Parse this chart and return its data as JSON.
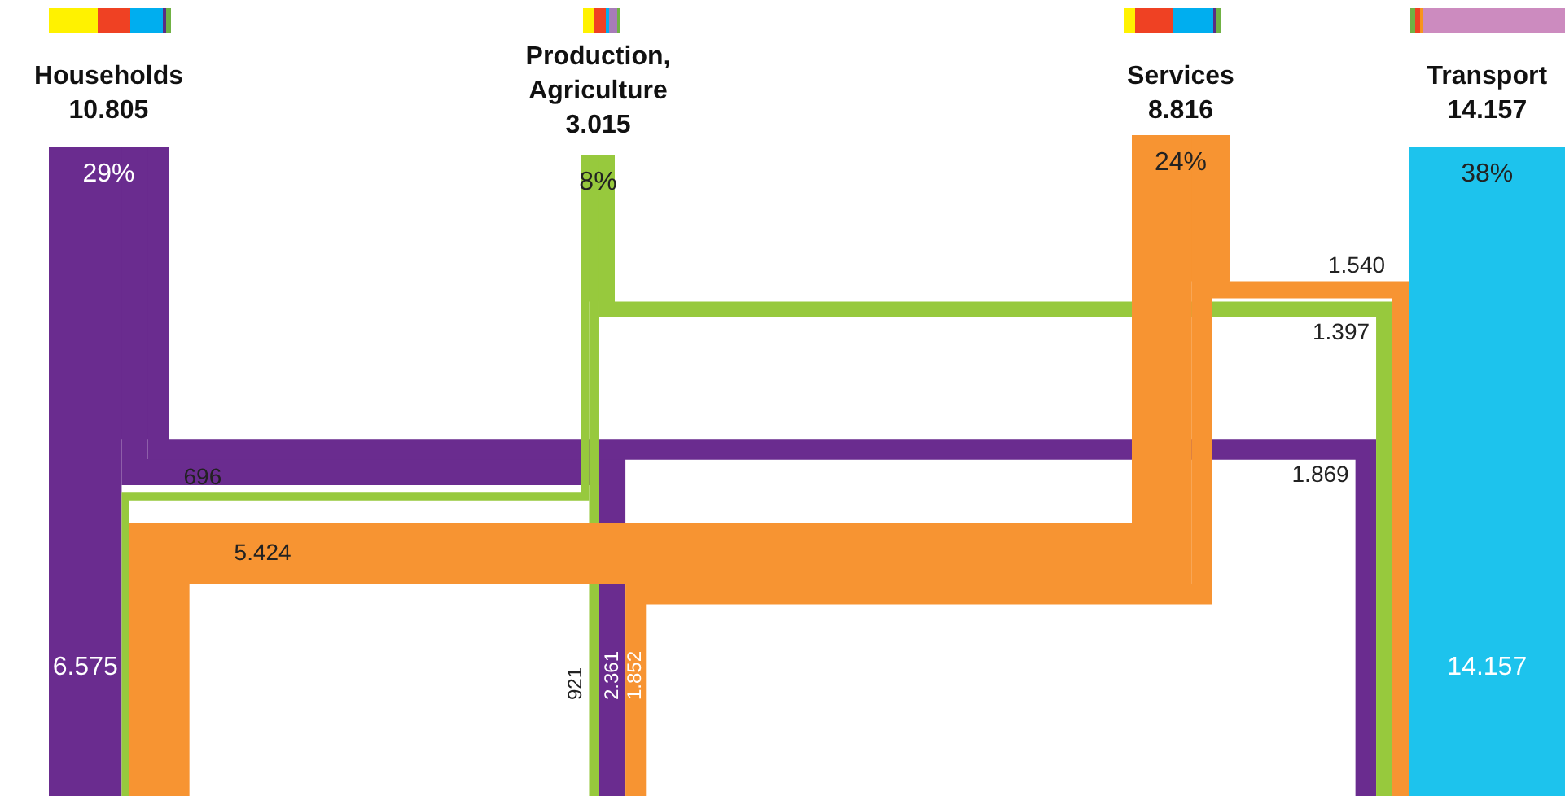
{
  "chart_data": {
    "type": "other",
    "categories": [
      "Households",
      "Production, Agriculture",
      "Services",
      "Transport"
    ],
    "totals": [
      "10.805",
      "3.015",
      "8.816",
      "14.157"
    ],
    "series": [
      {
        "color": "#6a2c8f",
        "values": [
          6575,
          2361,
          null,
          1869
        ],
        "value_labels": [
          "6.575",
          "2.361",
          null,
          "1.869"
        ]
      },
      {
        "color": "#97c93d",
        "values": [
          696,
          921,
          null,
          1397
        ],
        "value_labels": [
          "696",
          "921",
          null,
          "1.397"
        ]
      },
      {
        "color": "#f79432",
        "values": [
          5424,
          1852,
          null,
          1540
        ],
        "value_labels": [
          "5.424",
          "1.852",
          null,
          "1.540"
        ]
      },
      {
        "color": "#1dc3ed",
        "values": [
          null,
          null,
          null,
          14157
        ],
        "value_labels": [
          null,
          null,
          null,
          "14.157"
        ]
      }
    ],
    "annotations": [
      {
        "text": "29%",
        "x": "Households"
      },
      {
        "text": "8%",
        "x": "Production, Agriculture"
      },
      {
        "text": "24%",
        "x": "Services"
      },
      {
        "text": "38%",
        "x": "Transport"
      }
    ]
  }
}
